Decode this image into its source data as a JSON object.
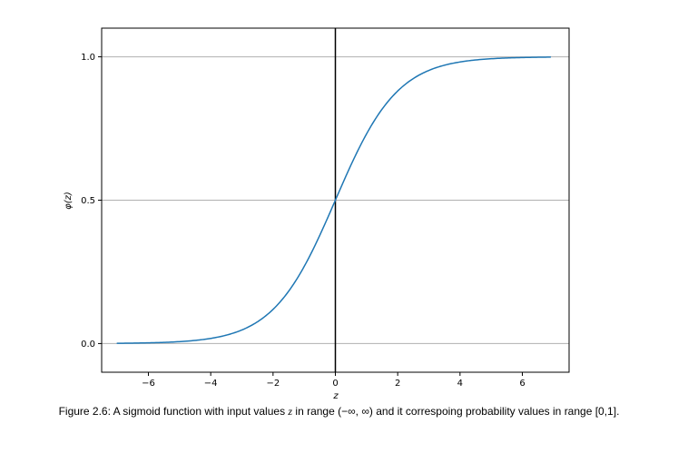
{
  "chart_data": {
    "type": "line",
    "xlabel": "z",
    "ylabel": "φ(z)",
    "xlim": [
      -7.5,
      7.5
    ],
    "ylim": [
      -0.1,
      1.1
    ],
    "xticks": [
      -6,
      -4,
      -2,
      0,
      2,
      4,
      6
    ],
    "xtick_labels": [
      "−6",
      "−4",
      "−2",
      "0",
      "2",
      "4",
      "6"
    ],
    "yticks": [
      0.0,
      0.5,
      1.0
    ],
    "ytick_labels": [
      "0.0",
      "0.5",
      "1.0"
    ],
    "grid": "horizontal at y ticks",
    "vline_x": 0,
    "series": [
      {
        "function": "sigmoid",
        "color": "#1f77b4",
        "x": [
          -7,
          -6.5,
          -6,
          -5.5,
          -5,
          -4.5,
          -4,
          -3.5,
          -3,
          -2.5,
          -2,
          -1.5,
          -1,
          -0.5,
          0,
          0.5,
          1,
          1.5,
          2,
          2.5,
          3,
          3.5,
          4,
          4.5,
          5,
          5.5,
          6,
          6.5,
          6.9
        ],
        "y": [
          0.0009,
          0.0015,
          0.0025,
          0.0041,
          0.0067,
          0.011,
          0.018,
          0.0293,
          0.0474,
          0.0759,
          0.1192,
          0.1824,
          0.2689,
          0.3775,
          0.5,
          0.6225,
          0.7311,
          0.8176,
          0.8808,
          0.9241,
          0.9526,
          0.9707,
          0.982,
          0.989,
          0.9933,
          0.9959,
          0.9975,
          0.9985,
          0.999
        ]
      }
    ]
  },
  "caption": {
    "figure_ref": "Figure 2.6:",
    "text_before": " A sigmoid function with input values ",
    "var": "z",
    "text_middle": " in range (",
    "range_open": "−∞, ∞",
    "text_after": ") and it correspoing probability values in range [0,1]."
  },
  "colors": {
    "line": "#1f77b4",
    "grid": "#b0b0b0",
    "axes": "#000000"
  }
}
